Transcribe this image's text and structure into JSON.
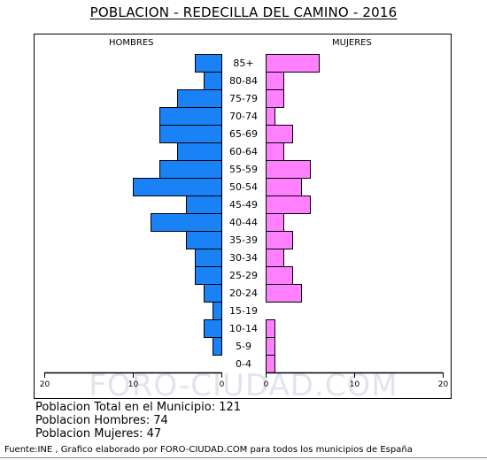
{
  "title": "POBLACION - REDECILLA DEL CAMINO - 2016",
  "watermark": "FORO-CIUDAD.COM",
  "stats": {
    "total": "Poblacion Total en el Municipio: 121",
    "hombres": "Poblacion Hombres: 74",
    "mujeres": "Poblacion Mujeres: 47"
  },
  "source": "Fuente:INE , Grafico elaborado por FORO-CIUDAD.COM para todos los municipios de España",
  "chart_data": {
    "type": "bar",
    "orientation": "horizontal-pyramid",
    "categories": [
      "85+",
      "80-84",
      "75-79",
      "70-74",
      "65-69",
      "60-64",
      "55-59",
      "50-54",
      "45-49",
      "40-44",
      "35-39",
      "30-34",
      "25-29",
      "20-24",
      "15-19",
      "10-14",
      "5-9",
      "0-4"
    ],
    "series": [
      {
        "name": "HOMBRES",
        "color": "#1a82f7",
        "values": [
          3,
          2,
          5,
          7,
          7,
          5,
          7,
          10,
          4,
          8,
          4,
          3,
          3,
          2,
          1,
          2,
          1,
          0
        ]
      },
      {
        "name": "MUJERES",
        "color": "#ff80ff",
        "values": [
          6,
          2,
          2,
          1,
          3,
          2,
          5,
          4,
          5,
          2,
          3,
          2,
          3,
          4,
          0,
          1,
          1,
          1
        ]
      }
    ],
    "xlim": [
      0,
      20
    ],
    "ticks": [
      "20",
      "10",
      "0",
      "0",
      "10",
      "20"
    ],
    "tick_values": [
      20,
      10,
      0,
      0,
      10,
      20
    ]
  }
}
